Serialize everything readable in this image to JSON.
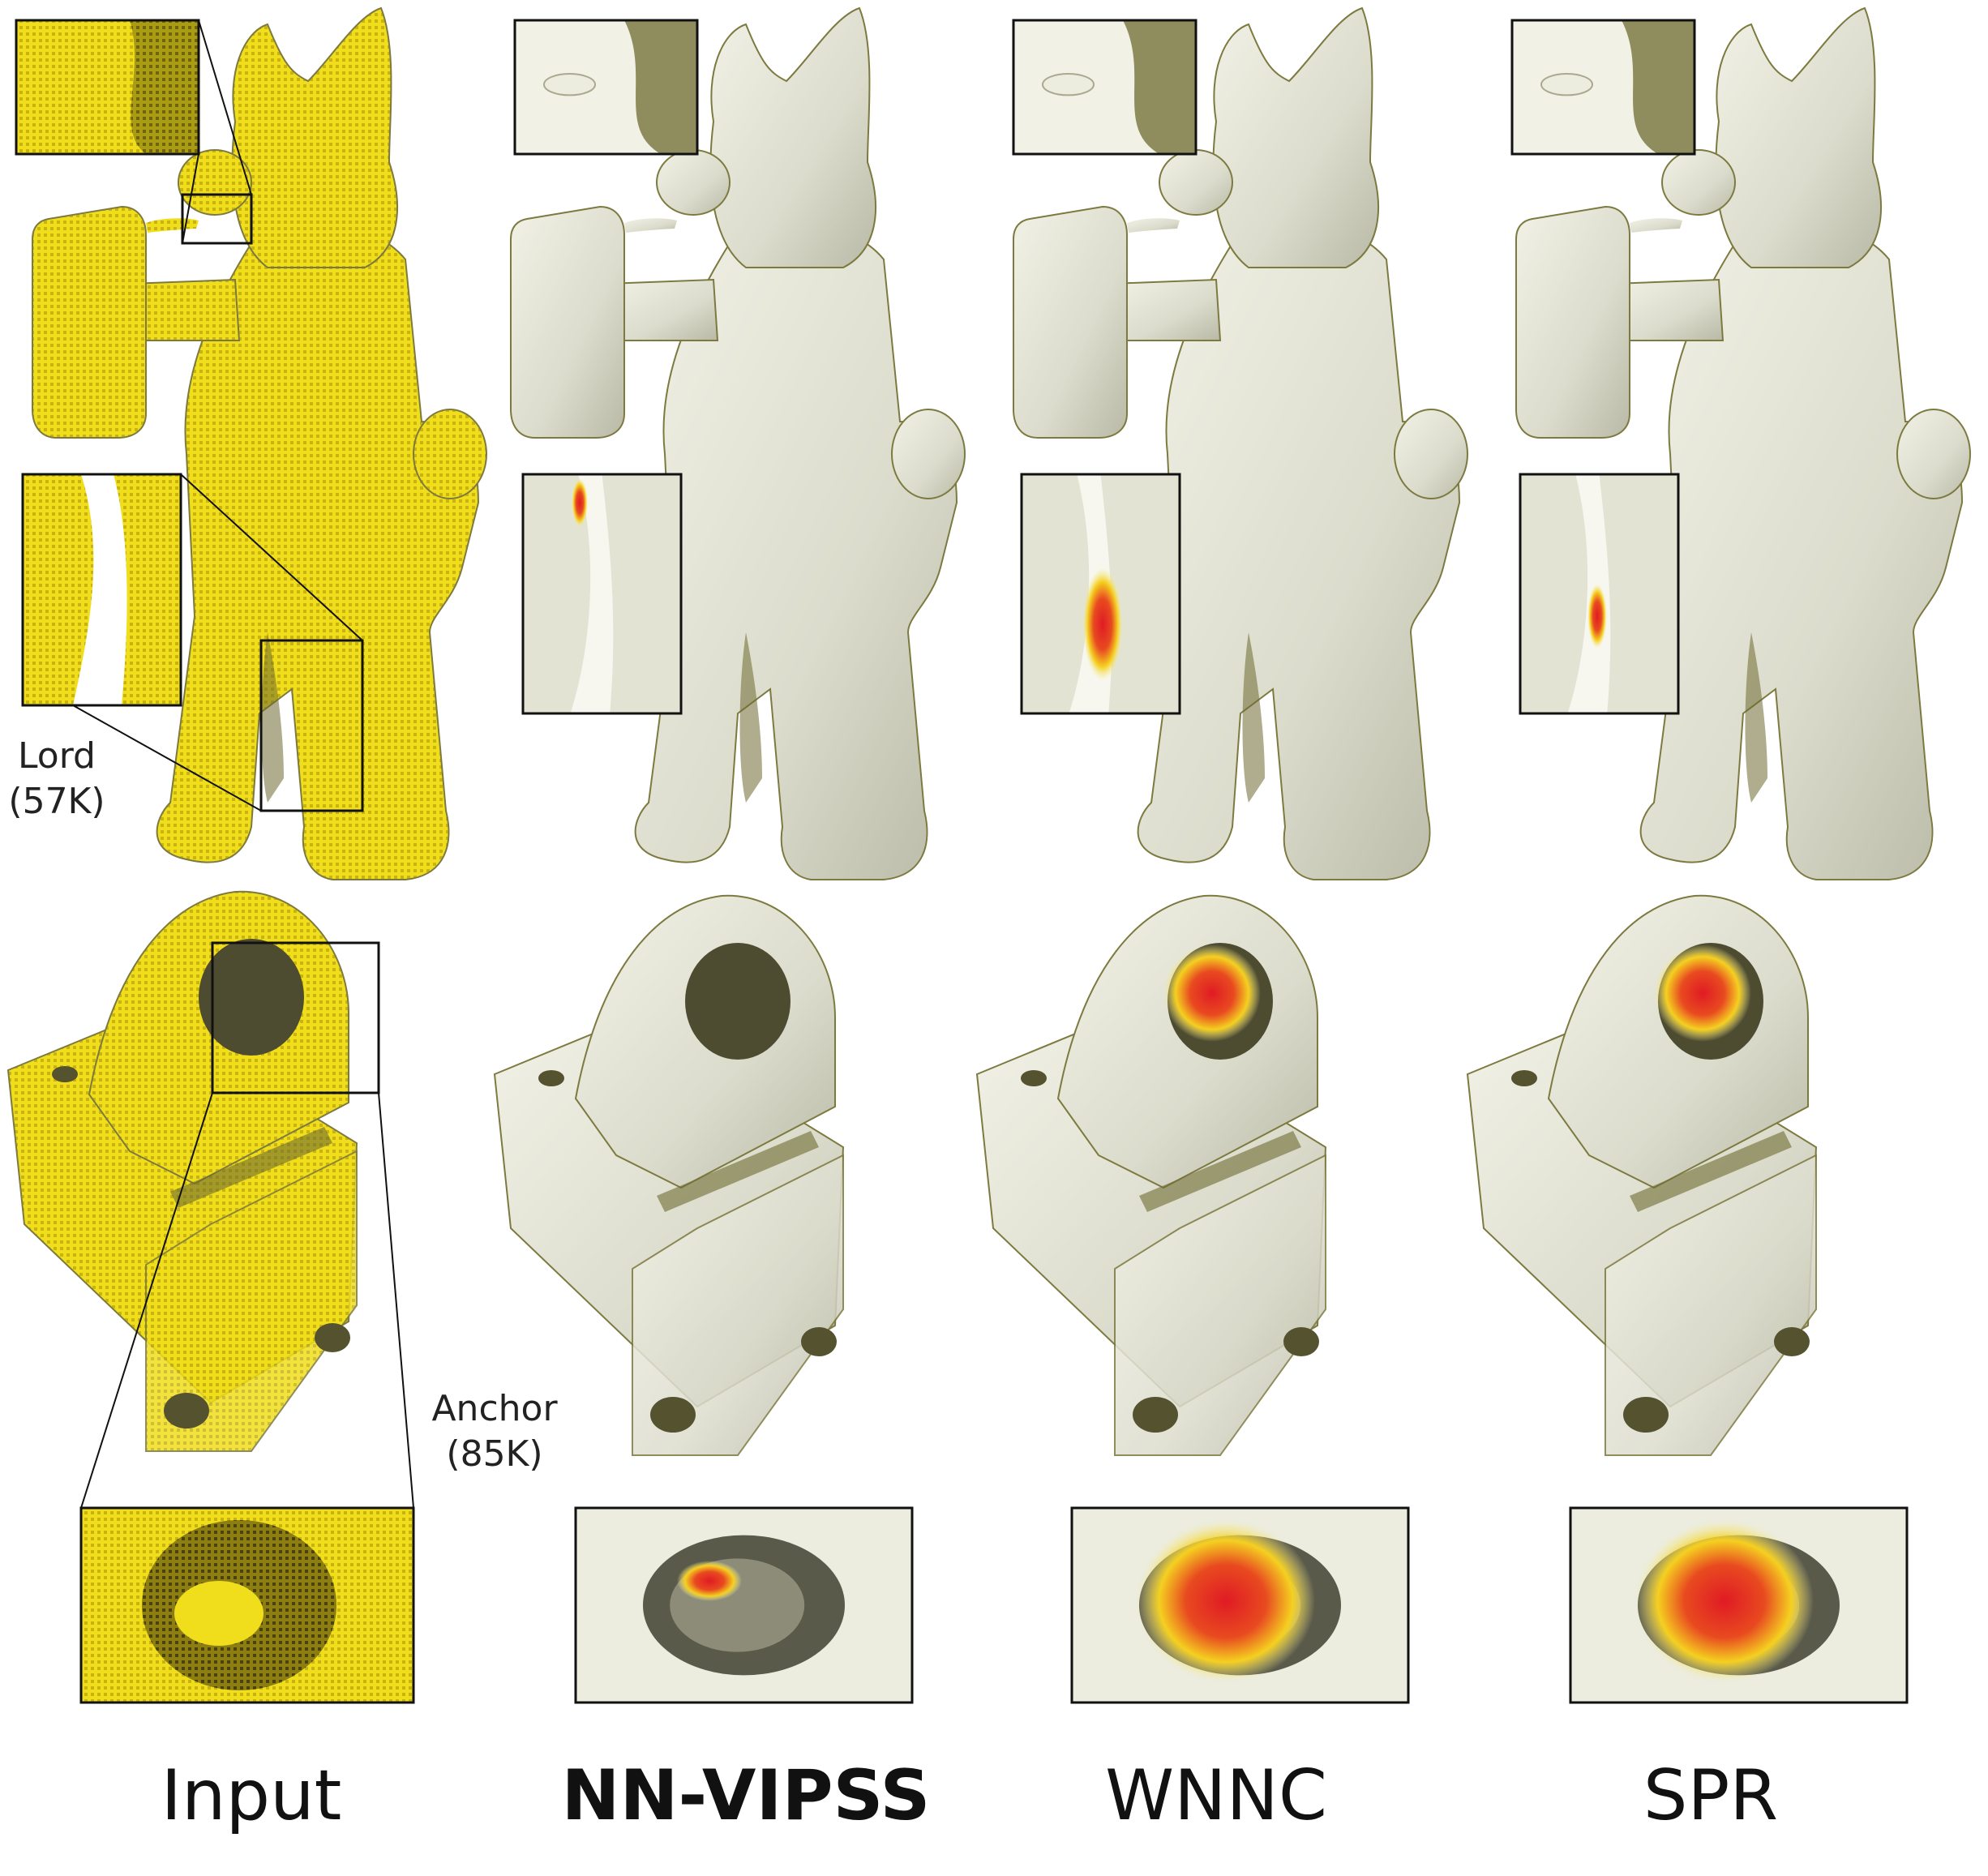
{
  "columns": [
    {
      "label": "Input",
      "emphasis": false
    },
    {
      "label": "NN-VIPSS",
      "emphasis": true
    },
    {
      "label": "WNNC",
      "emphasis": false
    },
    {
      "label": "SPR",
      "emphasis": false
    }
  ],
  "models": [
    {
      "name": "Lord",
      "count": "(57K)"
    },
    {
      "name": "Anchor",
      "count": "(85K)"
    }
  ],
  "colors": {
    "point_cloud": "#f2e21f",
    "surface": "#e4e4d8",
    "error_high": "#e01b24",
    "error_mid": "#f5d020",
    "inset_border": "#111111"
  }
}
